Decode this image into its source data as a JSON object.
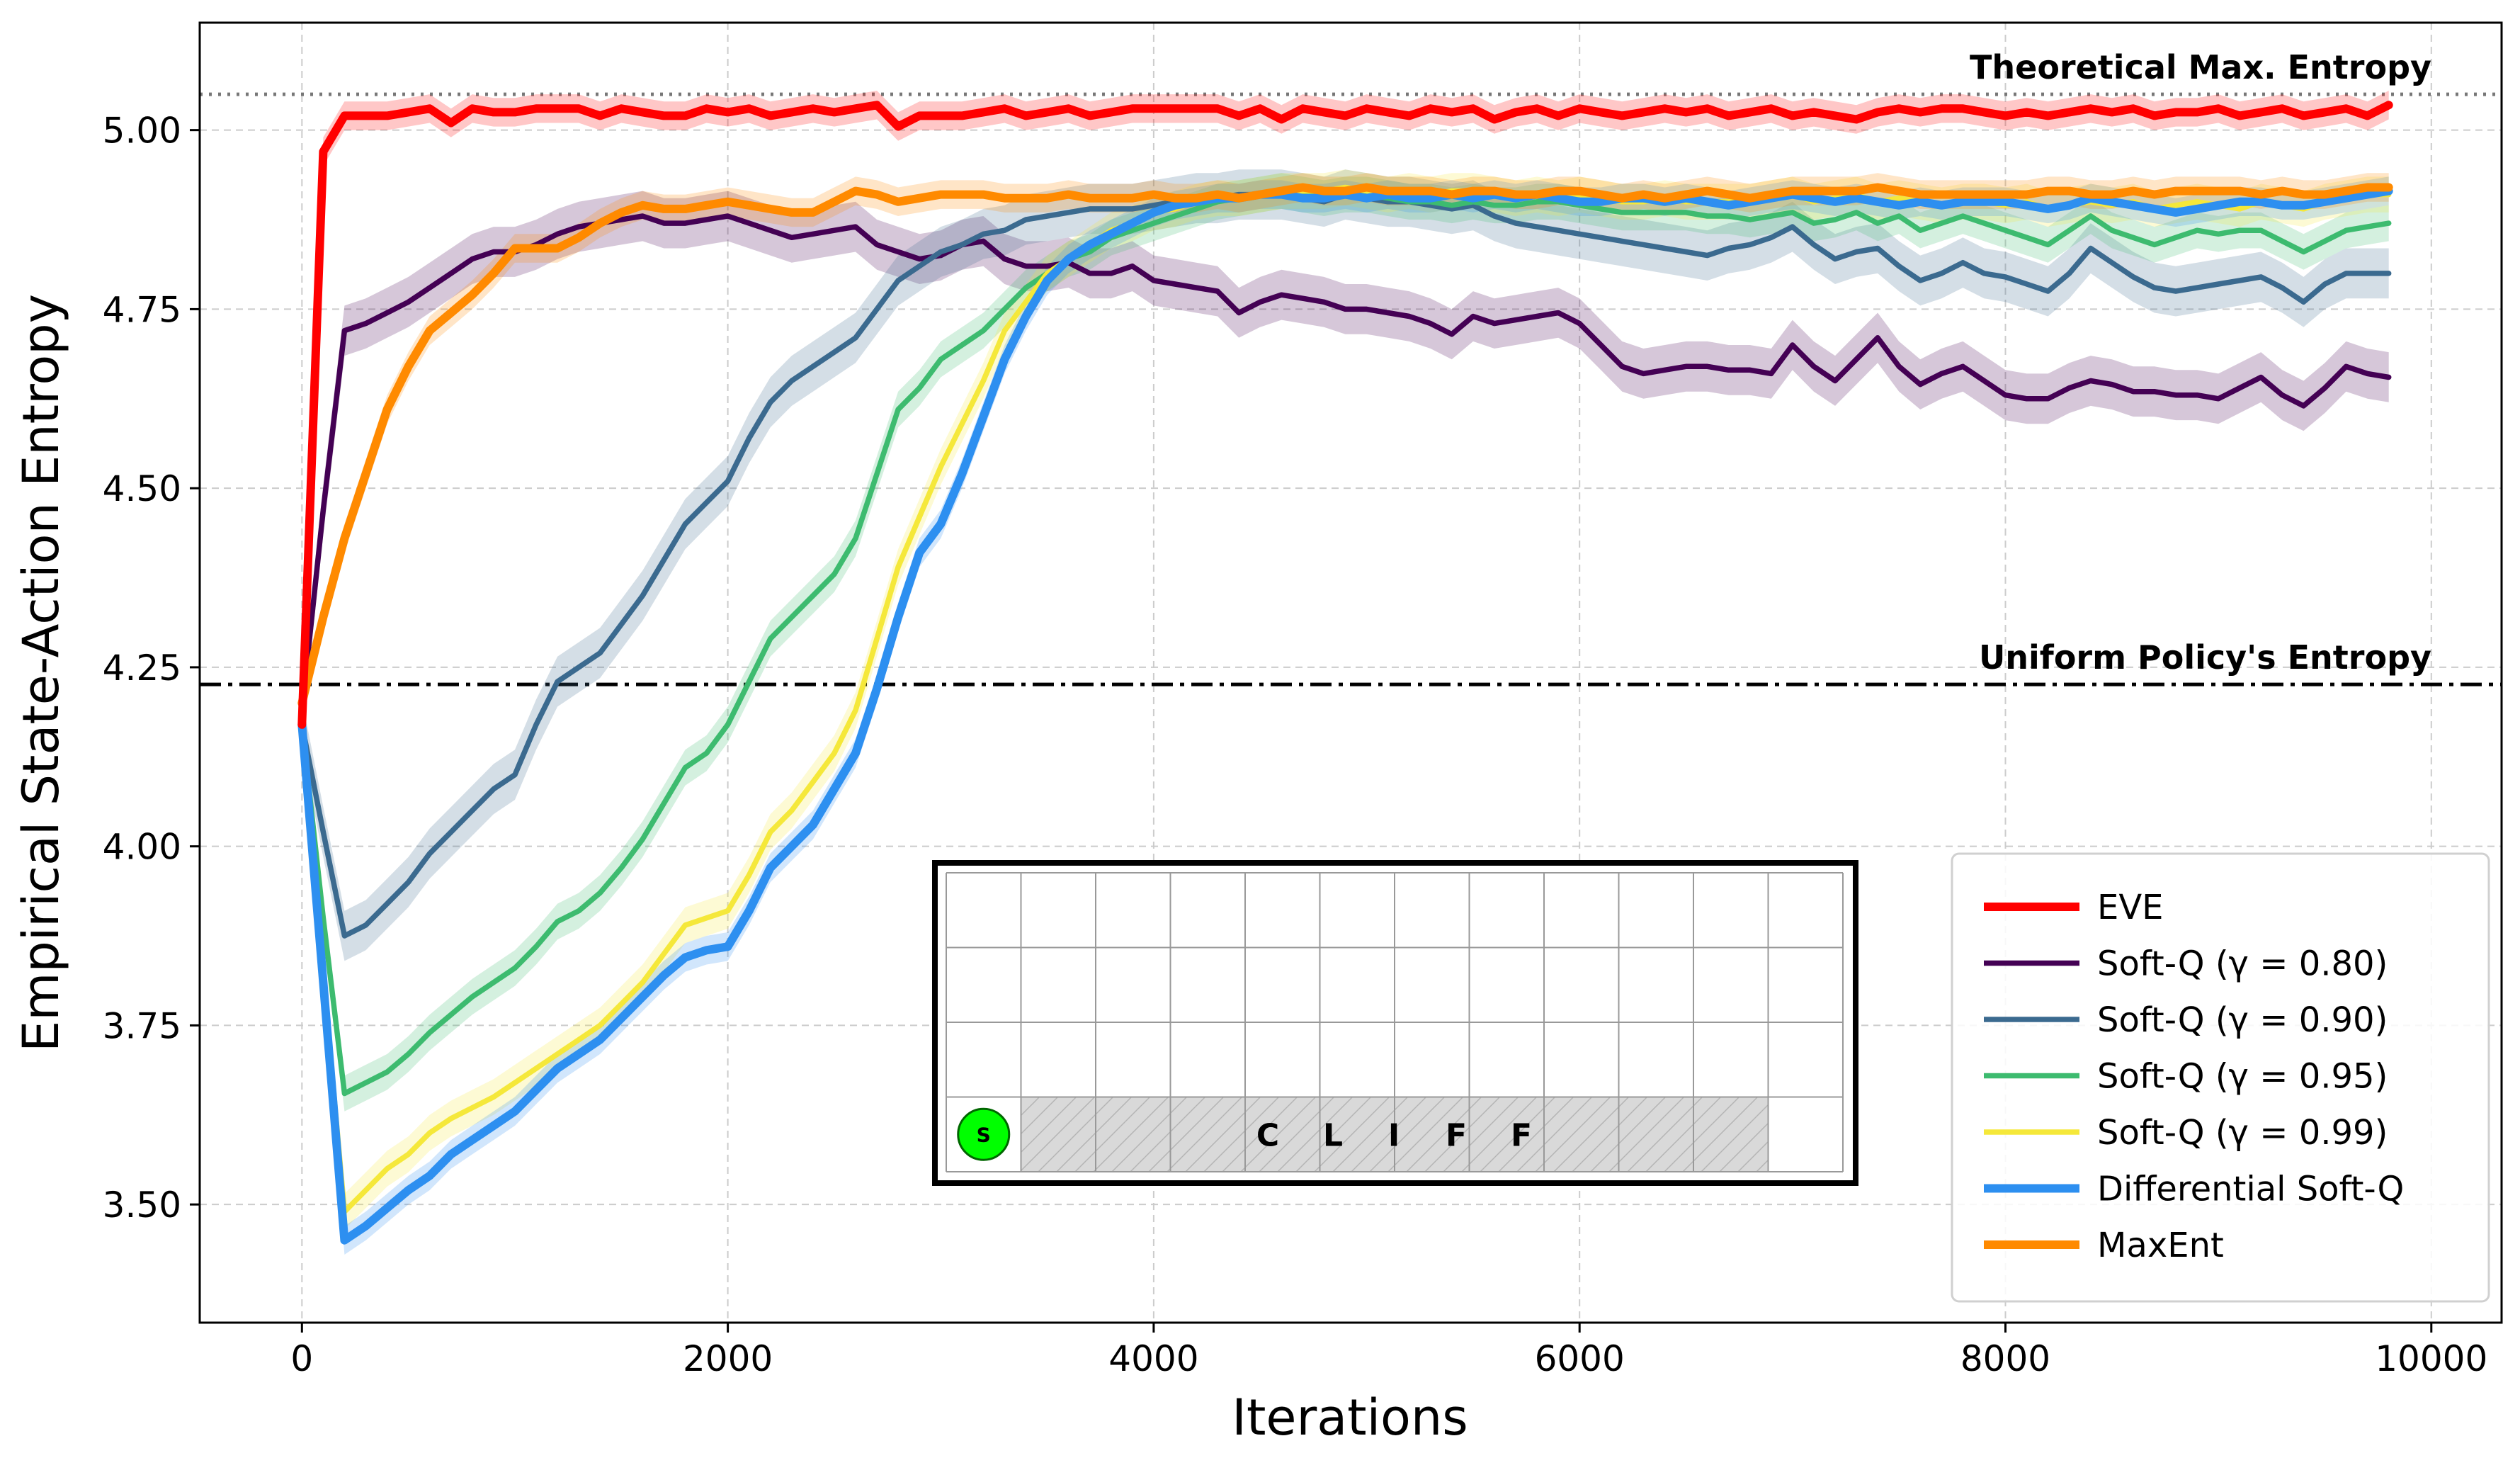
{
  "chart_data": {
    "type": "line",
    "xlabel": "Iterations",
    "ylabel": "Empirical State-Action Entropy",
    "xlim": [
      -480,
      10330
    ],
    "ylim": [
      3.335,
      5.15
    ],
    "xticks": [
      0,
      2000,
      4000,
      6000,
      8000,
      10000
    ],
    "xtick_labels": [
      "0",
      "2000",
      "4000",
      "6000",
      "8000",
      "10000"
    ],
    "yticks": [
      3.5,
      3.75,
      4.0,
      4.25,
      4.5,
      4.75,
      5.0
    ],
    "ytick_labels": [
      "3.50",
      "3.75",
      "4.00",
      "4.25",
      "4.50",
      "4.75",
      "5.00"
    ],
    "grid": true,
    "legend_position": "lower-right",
    "reference_lines": [
      {
        "name": "theoretical-max",
        "value": 5.05,
        "label": "Theoretical Max. Entropy",
        "style": "dotted",
        "color": "#777777"
      },
      {
        "name": "uniform-policy",
        "value": 4.226,
        "label": "Uniform Policy's Entropy",
        "style": "dashdot",
        "color": "#000000"
      }
    ],
    "x": [
      0,
      100,
      200,
      300,
      400,
      500,
      600,
      700,
      800,
      900,
      1000,
      1100,
      1200,
      1300,
      1400,
      1500,
      1600,
      1700,
      1800,
      1900,
      2000,
      2100,
      2200,
      2300,
      2400,
      2500,
      2600,
      2700,
      2800,
      2900,
      3000,
      3100,
      3200,
      3300,
      3400,
      3500,
      3600,
      3700,
      3800,
      3900,
      4000,
      4100,
      4200,
      4300,
      4400,
      4500,
      4600,
      4700,
      4800,
      4900,
      5000,
      5100,
      5200,
      5300,
      5400,
      5500,
      5600,
      5700,
      5800,
      5900,
      6000,
      6100,
      6200,
      6300,
      6400,
      6500,
      6600,
      6700,
      6800,
      6900,
      7000,
      7100,
      7200,
      7300,
      7400,
      7500,
      7600,
      7700,
      7800,
      7900,
      8000,
      8100,
      8200,
      8300,
      8400,
      8500,
      8600,
      8700,
      8800,
      8900,
      9000,
      9100,
      9200,
      9300,
      9400,
      9500,
      9600,
      9700,
      9800
    ],
    "series": [
      {
        "name": "EVE",
        "color": "#ff0000",
        "width": 4.0,
        "band": 0.02,
        "values": [
          4.17,
          4.97,
          5.02,
          5.02,
          5.02,
          5.025,
          5.03,
          5.01,
          5.03,
          5.025,
          5.025,
          5.03,
          5.03,
          5.03,
          5.02,
          5.03,
          5.025,
          5.02,
          5.02,
          5.03,
          5.025,
          5.03,
          5.02,
          5.025,
          5.03,
          5.025,
          5.03,
          5.035,
          5.005,
          5.02,
          5.02,
          5.02,
          5.025,
          5.03,
          5.02,
          5.025,
          5.03,
          5.02,
          5.025,
          5.03,
          5.03,
          5.03,
          5.03,
          5.03,
          5.02,
          5.03,
          5.015,
          5.03,
          5.025,
          5.02,
          5.03,
          5.025,
          5.02,
          5.03,
          5.025,
          5.03,
          5.015,
          5.025,
          5.03,
          5.02,
          5.03,
          5.025,
          5.02,
          5.025,
          5.03,
          5.025,
          5.03,
          5.02,
          5.025,
          5.03,
          5.02,
          5.025,
          5.02,
          5.015,
          5.025,
          5.03,
          5.025,
          5.03,
          5.03,
          5.025,
          5.02,
          5.025,
          5.02,
          5.025,
          5.03,
          5.025,
          5.03,
          5.02,
          5.025,
          5.025,
          5.03,
          5.02,
          5.025,
          5.03,
          5.02,
          5.025,
          5.03,
          5.02,
          5.035
        ]
      },
      {
        "name": "Soft-Q (γ = 0.80)",
        "color": "#440154",
        "width": 2.5,
        "band": 0.035,
        "values": [
          4.19,
          4.47,
          4.72,
          4.73,
          4.745,
          4.76,
          4.78,
          4.8,
          4.82,
          4.83,
          4.83,
          4.84,
          4.855,
          4.865,
          4.87,
          4.875,
          4.88,
          4.87,
          4.87,
          4.875,
          4.88,
          4.87,
          4.86,
          4.85,
          4.855,
          4.86,
          4.865,
          4.84,
          4.83,
          4.82,
          4.825,
          4.84,
          4.845,
          4.82,
          4.81,
          4.81,
          4.815,
          4.8,
          4.8,
          4.81,
          4.79,
          4.785,
          4.78,
          4.775,
          4.745,
          4.76,
          4.77,
          4.765,
          4.76,
          4.75,
          4.75,
          4.745,
          4.74,
          4.73,
          4.715,
          4.74,
          4.73,
          4.735,
          4.74,
          4.745,
          4.73,
          4.7,
          4.67,
          4.66,
          4.665,
          4.67,
          4.67,
          4.665,
          4.665,
          4.66,
          4.7,
          4.67,
          4.65,
          4.68,
          4.71,
          4.67,
          4.645,
          4.66,
          4.67,
          4.65,
          4.63,
          4.625,
          4.625,
          4.64,
          4.65,
          4.645,
          4.635,
          4.635,
          4.63,
          4.63,
          4.625,
          4.64,
          4.655,
          4.63,
          4.615,
          4.64,
          4.67,
          4.66,
          4.655
        ]
      },
      {
        "name": "Soft-Q (γ = 0.90)",
        "color": "#3b6a8f",
        "width": 2.5,
        "band": 0.035,
        "values": [
          4.17,
          4.02,
          3.875,
          3.89,
          3.92,
          3.95,
          3.99,
          4.02,
          4.05,
          4.08,
          4.1,
          4.17,
          4.23,
          4.25,
          4.27,
          4.31,
          4.35,
          4.4,
          4.45,
          4.48,
          4.51,
          4.57,
          4.62,
          4.65,
          4.67,
          4.69,
          4.71,
          4.75,
          4.79,
          4.81,
          4.83,
          4.84,
          4.855,
          4.86,
          4.875,
          4.88,
          4.885,
          4.89,
          4.89,
          4.89,
          4.895,
          4.9,
          4.905,
          4.905,
          4.91,
          4.91,
          4.91,
          4.905,
          4.9,
          4.91,
          4.905,
          4.9,
          4.9,
          4.895,
          4.89,
          4.895,
          4.88,
          4.87,
          4.865,
          4.86,
          4.855,
          4.85,
          4.845,
          4.84,
          4.835,
          4.83,
          4.825,
          4.835,
          4.84,
          4.85,
          4.865,
          4.84,
          4.82,
          4.83,
          4.835,
          4.81,
          4.79,
          4.8,
          4.815,
          4.8,
          4.795,
          4.785,
          4.775,
          4.8,
          4.835,
          4.815,
          4.795,
          4.78,
          4.775,
          4.78,
          4.785,
          4.79,
          4.795,
          4.78,
          4.76,
          4.785,
          4.8,
          4.8,
          4.8
        ]
      },
      {
        "name": "Soft-Q (γ = 0.95)",
        "color": "#3dbb6f",
        "width": 2.5,
        "band": 0.025,
        "values": [
          4.17,
          3.9,
          3.655,
          3.67,
          3.685,
          3.71,
          3.74,
          3.765,
          3.79,
          3.81,
          3.83,
          3.86,
          3.895,
          3.91,
          3.935,
          3.97,
          4.01,
          4.06,
          4.11,
          4.13,
          4.17,
          4.23,
          4.29,
          4.32,
          4.35,
          4.38,
          4.43,
          4.52,
          4.61,
          4.64,
          4.68,
          4.7,
          4.72,
          4.75,
          4.78,
          4.8,
          4.82,
          4.83,
          4.85,
          4.86,
          4.87,
          4.88,
          4.89,
          4.9,
          4.905,
          4.91,
          4.915,
          4.91,
          4.905,
          4.91,
          4.91,
          4.905,
          4.9,
          4.9,
          4.895,
          4.9,
          4.895,
          4.895,
          4.9,
          4.9,
          4.895,
          4.89,
          4.885,
          4.885,
          4.885,
          4.885,
          4.88,
          4.88,
          4.875,
          4.88,
          4.885,
          4.87,
          4.875,
          4.885,
          4.87,
          4.88,
          4.86,
          4.87,
          4.88,
          4.87,
          4.86,
          4.85,
          4.84,
          4.86,
          4.88,
          4.86,
          4.85,
          4.84,
          4.85,
          4.86,
          4.855,
          4.86,
          4.86,
          4.845,
          4.83,
          4.845,
          4.86,
          4.865,
          4.87
        ]
      },
      {
        "name": "Soft-Q (γ = 0.99)",
        "color": "#f5e83a",
        "width": 2.5,
        "band": 0.025,
        "values": [
          4.17,
          3.82,
          3.49,
          3.52,
          3.55,
          3.57,
          3.6,
          3.62,
          3.635,
          3.65,
          3.67,
          3.69,
          3.71,
          3.73,
          3.75,
          3.78,
          3.81,
          3.85,
          3.89,
          3.9,
          3.91,
          3.96,
          4.02,
          4.05,
          4.09,
          4.13,
          4.19,
          4.29,
          4.39,
          4.46,
          4.53,
          4.59,
          4.65,
          4.72,
          4.76,
          4.8,
          4.82,
          4.84,
          4.86,
          4.87,
          4.885,
          4.89,
          4.9,
          4.905,
          4.905,
          4.91,
          4.915,
          4.915,
          4.915,
          4.92,
          4.915,
          4.91,
          4.915,
          4.91,
          4.915,
          4.915,
          4.91,
          4.905,
          4.91,
          4.905,
          4.91,
          4.905,
          4.9,
          4.9,
          4.905,
          4.9,
          4.9,
          4.9,
          4.9,
          4.905,
          4.91,
          4.9,
          4.905,
          4.91,
          4.9,
          4.905,
          4.9,
          4.895,
          4.9,
          4.9,
          4.895,
          4.9,
          4.89,
          4.895,
          4.9,
          4.895,
          4.9,
          4.89,
          4.895,
          4.9,
          4.895,
          4.89,
          4.9,
          4.895,
          4.89,
          4.9,
          4.905,
          4.91,
          4.91
        ]
      },
      {
        "name": "Differential Soft-Q",
        "color": "#2d8ff0",
        "width": 4.0,
        "band": 0.02,
        "values": [
          4.17,
          3.81,
          3.45,
          3.47,
          3.495,
          3.52,
          3.54,
          3.57,
          3.59,
          3.61,
          3.63,
          3.66,
          3.69,
          3.71,
          3.73,
          3.76,
          3.79,
          3.82,
          3.845,
          3.855,
          3.86,
          3.91,
          3.97,
          4.0,
          4.03,
          4.08,
          4.13,
          4.22,
          4.32,
          4.41,
          4.45,
          4.52,
          4.6,
          4.68,
          4.74,
          4.79,
          4.82,
          4.84,
          4.855,
          4.87,
          4.885,
          4.895,
          4.9,
          4.905,
          4.905,
          4.91,
          4.91,
          4.905,
          4.905,
          4.91,
          4.905,
          4.91,
          4.905,
          4.905,
          4.91,
          4.905,
          4.91,
          4.905,
          4.91,
          4.905,
          4.9,
          4.9,
          4.905,
          4.905,
          4.9,
          4.905,
          4.9,
          4.895,
          4.9,
          4.905,
          4.91,
          4.905,
          4.9,
          4.905,
          4.9,
          4.895,
          4.9,
          4.895,
          4.9,
          4.9,
          4.9,
          4.895,
          4.89,
          4.895,
          4.905,
          4.9,
          4.895,
          4.89,
          4.885,
          4.89,
          4.895,
          4.9,
          4.9,
          4.895,
          4.895,
          4.9,
          4.905,
          4.91,
          4.915
        ]
      },
      {
        "name": "MaxEnt",
        "color": "#ff8a00",
        "width": 4.0,
        "band": 0.02,
        "values": [
          4.2,
          4.32,
          4.43,
          4.52,
          4.61,
          4.67,
          4.72,
          4.745,
          4.77,
          4.8,
          4.835,
          4.835,
          4.835,
          4.85,
          4.87,
          4.885,
          4.895,
          4.89,
          4.89,
          4.895,
          4.9,
          4.895,
          4.89,
          4.885,
          4.885,
          4.9,
          4.915,
          4.91,
          4.9,
          4.905,
          4.91,
          4.91,
          4.91,
          4.905,
          4.905,
          4.905,
          4.91,
          4.905,
          4.905,
          4.905,
          4.91,
          4.905,
          4.905,
          4.91,
          4.905,
          4.91,
          4.915,
          4.92,
          4.915,
          4.915,
          4.92,
          4.915,
          4.915,
          4.915,
          4.91,
          4.915,
          4.915,
          4.91,
          4.91,
          4.915,
          4.915,
          4.91,
          4.905,
          4.91,
          4.905,
          4.91,
          4.915,
          4.91,
          4.905,
          4.91,
          4.915,
          4.915,
          4.915,
          4.915,
          4.92,
          4.915,
          4.91,
          4.91,
          4.91,
          4.91,
          4.91,
          4.91,
          4.915,
          4.915,
          4.91,
          4.91,
          4.915,
          4.91,
          4.915,
          4.915,
          4.915,
          4.915,
          4.91,
          4.915,
          4.91,
          4.91,
          4.915,
          4.92,
          4.92
        ]
      }
    ],
    "inset": {
      "rows": 4,
      "cols": 12,
      "start_label": "S",
      "start_color": "#00ff00",
      "cliff_letters": [
        "C",
        "L",
        "I",
        "F",
        "F"
      ],
      "cliff_start_col": 1,
      "cliff_end_col": 10
    }
  }
}
